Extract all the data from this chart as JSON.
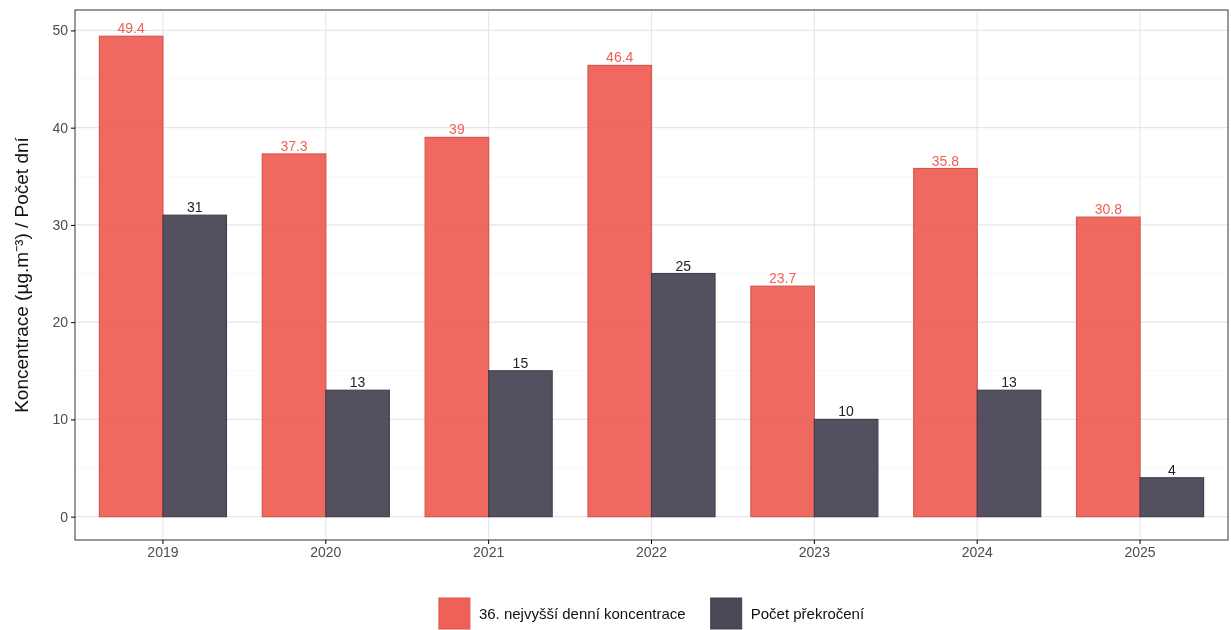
{
  "chart_data": {
    "type": "bar",
    "ylabel": "Koncentrace (µg.m⁻³) / Počet dní",
    "categories": [
      "2019",
      "2020",
      "2021",
      "2022",
      "2023",
      "2024",
      "2025"
    ],
    "series": [
      {
        "name": "36. nejvyšší denní koncentrace",
        "color": "#ef6157",
        "values": [
          49.4,
          37.3,
          39,
          46.4,
          23.7,
          35.8,
          30.8
        ]
      },
      {
        "name": "Počet překročení",
        "color": "#4b4757",
        "values": [
          31,
          13,
          15,
          25,
          10,
          13,
          4
        ]
      }
    ],
    "ylim": [
      -2.4,
      52.1
    ],
    "yticks": [
      0,
      10,
      20,
      30,
      40,
      50
    ],
    "grid": true,
    "legend": "bottom",
    "data_labels": true
  }
}
